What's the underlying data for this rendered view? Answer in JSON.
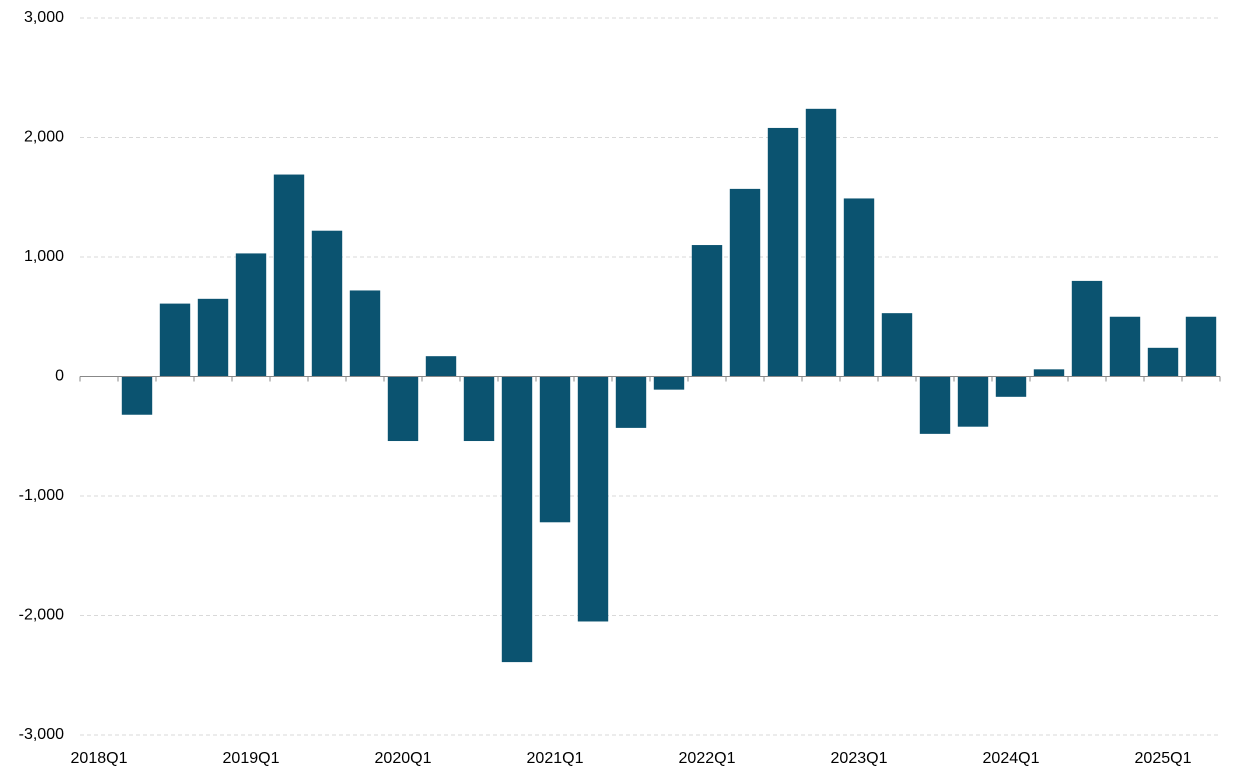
{
  "chart_data": {
    "type": "bar",
    "categories": [
      "2018Q1",
      null,
      null,
      null,
      "2019Q1",
      null,
      null,
      null,
      "2020Q1",
      null,
      null,
      null,
      "2021Q1",
      null,
      null,
      null,
      "2022Q1",
      null,
      null,
      null,
      "2023Q1",
      null,
      null,
      null,
      "2024Q1",
      null,
      null,
      null,
      "2025Q1",
      null
    ],
    "values": [
      0,
      -320,
      610,
      650,
      1030,
      1690,
      1220,
      720,
      -540,
      170,
      -540,
      -2390,
      -1220,
      -2050,
      -430,
      -110,
      1100,
      1570,
      2080,
      2240,
      1490,
      530,
      -480,
      -420,
      -170,
      60,
      800,
      500,
      240,
      500
    ],
    "color": "#0b5370",
    "ylim": [
      -3000,
      3000
    ],
    "yticks": [
      {
        "value": -3000,
        "label": "-3,000"
      },
      {
        "value": -2000,
        "label": "-2,000"
      },
      {
        "value": -1000,
        "label": "-1,000"
      },
      0,
      {
        "value": 1000,
        "label": "1,000"
      },
      {
        "value": 2000,
        "label": "2,000"
      },
      {
        "value": 3000,
        "label": "3,000"
      }
    ],
    "grid": true
  }
}
